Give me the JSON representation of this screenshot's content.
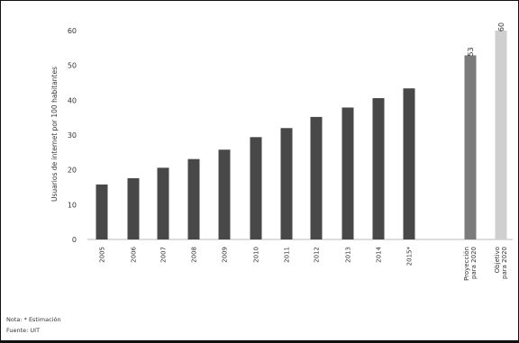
{
  "chart_data": {
    "type": "bar",
    "ylabel": "Usuarios de internet por 100 habitantes",
    "ylim": [
      0,
      60
    ],
    "yticks": [
      0,
      10,
      20,
      30,
      40,
      50,
      60
    ],
    "grid": false,
    "categories": [
      "2005",
      "2006",
      "2007",
      "2008",
      "2009",
      "2010",
      "2011",
      "2012",
      "2013",
      "2014",
      "2015*",
      "Proyección para 2020",
      "Objetivo para 2020"
    ],
    "values": [
      15.8,
      17.6,
      20.6,
      23.1,
      25.8,
      29.4,
      32.0,
      35.2,
      37.9,
      40.6,
      43.4,
      52.9,
      60.0
    ],
    "data_labels": [
      "",
      "",
      "",
      "",
      "",
      "",
      "",
      "",
      "",
      "",
      "",
      "53",
      "60"
    ],
    "colors": {
      "historical": "#484848",
      "projection": "#7b7b7b",
      "target": "#cfcfcf"
    }
  },
  "notes": {
    "note": "Nota: * Estimación",
    "source": "Fuente: UIT"
  }
}
